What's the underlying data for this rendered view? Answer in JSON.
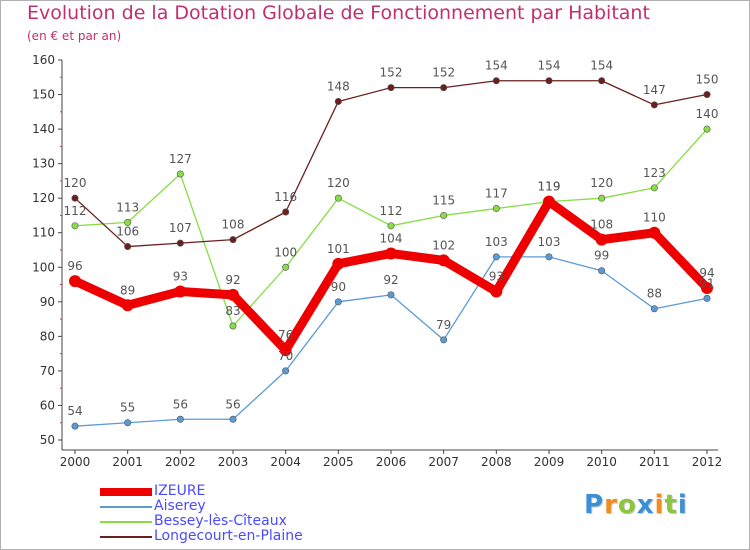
{
  "chart_data": {
    "type": "line",
    "title": "Evolution de la Dotation Globale de Fonctionnement par Habitant",
    "subtitle": "(en € et par an)",
    "xlabel": "",
    "ylabel": "",
    "ylim": [
      50,
      160
    ],
    "yticks": [
      50,
      60,
      70,
      80,
      90,
      100,
      110,
      120,
      130,
      140,
      150,
      160
    ],
    "categories": [
      "2000",
      "2001",
      "2002",
      "2003",
      "2004",
      "2005",
      "2006",
      "2007",
      "2008",
      "2009",
      "2010",
      "2011",
      "2012"
    ],
    "grid": false,
    "legend_position": "bottom-left",
    "series": [
      {
        "name": "IZEURE",
        "color": "#ee0000",
        "highlight": true,
        "values": [
          96,
          89,
          93,
          92,
          76,
          101,
          104,
          102,
          93,
          119,
          108,
          110,
          94
        ]
      },
      {
        "name": "Aiserey",
        "color": "#5b9bd5",
        "highlight": false,
        "values": [
          54,
          55,
          56,
          56,
          70,
          90,
          92,
          79,
          103,
          103,
          99,
          88,
          91
        ]
      },
      {
        "name": "Bessey-lès-Cîteaux",
        "color": "#88dd44",
        "highlight": false,
        "values": [
          112,
          113,
          127,
          83,
          100,
          120,
          112,
          115,
          117,
          119,
          120,
          123,
          140
        ]
      },
      {
        "name": "Longecourt-en-Plaine",
        "color": "#6b1f1f",
        "highlight": false,
        "values": [
          120,
          106,
          107,
          108,
          116,
          148,
          152,
          152,
          154,
          154,
          154,
          147,
          150
        ]
      }
    ]
  },
  "logo": {
    "letters": [
      "P",
      "r",
      "o",
      "x",
      "i",
      "t",
      "i"
    ],
    "colors": [
      "#3a8fd9",
      "#f28c1e",
      "#8cc63f",
      "#3a8fd9",
      "#f28c1e",
      "#8cc63f",
      "#3a8fd9"
    ]
  }
}
